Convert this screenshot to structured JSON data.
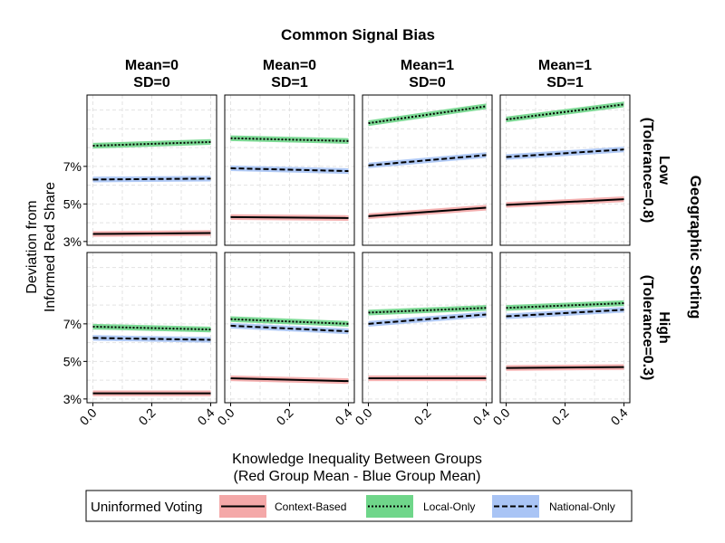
{
  "chart_data": {
    "type": "line",
    "title": "Common Signal Bias",
    "xlabel": [
      "Knowledge Inequality Between Groups",
      "(Red Group Mean - Blue Group Mean)"
    ],
    "ylabel": [
      "Deviation from",
      "Informed Red Share"
    ],
    "row_strip_title": "Geographic Sorting",
    "columns": [
      {
        "line1": "Mean=0",
        "line2": "SD=0"
      },
      {
        "line1": "Mean=0",
        "line2": "SD=1"
      },
      {
        "line1": "Mean=1",
        "line2": "SD=0"
      },
      {
        "line1": "Mean=1",
        "line2": "SD=1"
      }
    ],
    "rows": [
      {
        "line1": "Low",
        "line2": "(Tolerance=0.8)"
      },
      {
        "line1": "High",
        "line2": "(Tolerance=0.3)"
      }
    ],
    "x": [
      0.0,
      0.4
    ],
    "xlim": [
      -0.02,
      0.42
    ],
    "xticks": [
      0.0,
      0.2,
      0.4
    ],
    "xtick_labels": [
      "0.0",
      "0.2",
      "0.4"
    ],
    "ylim": [
      2.8,
      10.8
    ],
    "yticks": [
      3,
      5,
      7
    ],
    "ytick_labels": [
      "3%",
      "5%",
      "7%"
    ],
    "ribbon_halfwidth": 0.15,
    "series_styles": [
      {
        "name": "Context-Based",
        "color": "#000000",
        "fill": "#f4a8a8",
        "dash": ""
      },
      {
        "name": "Local-Only",
        "color": "#000000",
        "fill": "#6fd68a",
        "dash": "2,2"
      },
      {
        "name": "National-Only",
        "color": "#000000",
        "fill": "#a9c4f5",
        "dash": "6,3"
      }
    ],
    "panels": [
      {
        "row": 0,
        "col": 0,
        "series": [
          {
            "name": "Context-Based",
            "values": [
              3.4,
              3.45
            ]
          },
          {
            "name": "Local-Only",
            "values": [
              8.1,
              8.3
            ]
          },
          {
            "name": "National-Only",
            "values": [
              6.3,
              6.35
            ]
          }
        ]
      },
      {
        "row": 0,
        "col": 1,
        "series": [
          {
            "name": "Context-Based",
            "values": [
              4.3,
              4.25
            ]
          },
          {
            "name": "Local-Only",
            "values": [
              8.5,
              8.35
            ]
          },
          {
            "name": "National-Only",
            "values": [
              6.9,
              6.75
            ]
          }
        ]
      },
      {
        "row": 0,
        "col": 2,
        "series": [
          {
            "name": "Context-Based",
            "values": [
              4.35,
              4.8
            ]
          },
          {
            "name": "Local-Only",
            "values": [
              9.3,
              10.2
            ]
          },
          {
            "name": "National-Only",
            "values": [
              7.05,
              7.6
            ]
          }
        ]
      },
      {
        "row": 0,
        "col": 3,
        "series": [
          {
            "name": "Context-Based",
            "values": [
              4.95,
              5.25
            ]
          },
          {
            "name": "Local-Only",
            "values": [
              9.5,
              10.3
            ]
          },
          {
            "name": "National-Only",
            "values": [
              7.5,
              7.9
            ]
          }
        ]
      },
      {
        "row": 1,
        "col": 0,
        "series": [
          {
            "name": "Context-Based",
            "values": [
              3.3,
              3.3
            ]
          },
          {
            "name": "Local-Only",
            "values": [
              6.85,
              6.7
            ]
          },
          {
            "name": "National-Only",
            "values": [
              6.25,
              6.15
            ]
          }
        ]
      },
      {
        "row": 1,
        "col": 1,
        "series": [
          {
            "name": "Context-Based",
            "values": [
              4.1,
              3.95
            ]
          },
          {
            "name": "Local-Only",
            "values": [
              7.25,
              7.0
            ]
          },
          {
            "name": "National-Only",
            "values": [
              6.9,
              6.6
            ]
          }
        ]
      },
      {
        "row": 1,
        "col": 2,
        "series": [
          {
            "name": "Context-Based",
            "values": [
              4.1,
              4.1
            ]
          },
          {
            "name": "Local-Only",
            "values": [
              7.6,
              7.85
            ]
          },
          {
            "name": "National-Only",
            "values": [
              7.0,
              7.5
            ]
          }
        ]
      },
      {
        "row": 1,
        "col": 3,
        "series": [
          {
            "name": "Context-Based",
            "values": [
              4.65,
              4.7
            ]
          },
          {
            "name": "Local-Only",
            "values": [
              7.85,
              8.1
            ]
          },
          {
            "name": "National-Only",
            "values": [
              7.4,
              7.75
            ]
          }
        ]
      }
    ],
    "legend": {
      "title": "Uninformed Voting",
      "entries": [
        "Context-Based",
        "Local-Only",
        "National-Only"
      ],
      "position": "bottom"
    }
  }
}
